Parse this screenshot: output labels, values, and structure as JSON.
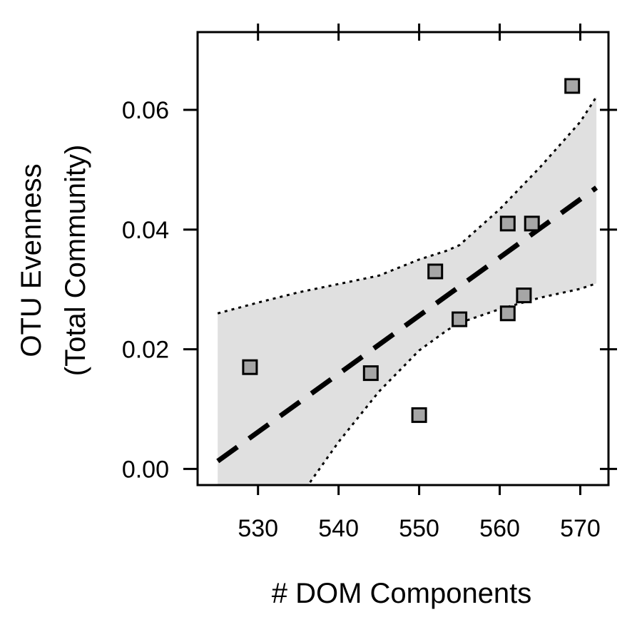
{
  "chart_data": {
    "type": "scatter",
    "title": "",
    "xlabel": "# DOM Components",
    "ylabel_lines": [
      "OTU Evenness",
      "(Total Community)"
    ],
    "xlim": [
      522.5,
      573.5
    ],
    "ylim": [
      -0.0027,
      0.073
    ],
    "x_ticks": [
      530,
      540,
      550,
      560,
      570
    ],
    "x_tick_labels": [
      "530",
      "540",
      "550",
      "560",
      "570"
    ],
    "y_ticks": [
      0.0,
      0.02,
      0.04,
      0.06
    ],
    "y_tick_labels": [
      "0.00",
      "0.02",
      "0.04",
      "0.06"
    ],
    "grid": false,
    "points": [
      {
        "x": 529,
        "y": 0.017
      },
      {
        "x": 544,
        "y": 0.016
      },
      {
        "x": 550,
        "y": 0.009
      },
      {
        "x": 552,
        "y": 0.033
      },
      {
        "x": 555,
        "y": 0.025
      },
      {
        "x": 561,
        "y": 0.041
      },
      {
        "x": 561,
        "y": 0.026
      },
      {
        "x": 563,
        "y": 0.029
      },
      {
        "x": 564,
        "y": 0.041
      },
      {
        "x": 569,
        "y": 0.064
      }
    ],
    "fit_line": {
      "x": [
        525,
        572
      ],
      "y": [
        0.0013,
        0.047
      ]
    },
    "confidence_band": {
      "x": [
        525,
        530,
        535,
        540,
        545,
        550,
        553.5,
        555,
        560,
        565,
        570,
        572
      ],
      "lower": [
        -0.0249,
        -0.0149,
        -0.005,
        0.0045,
        0.0129,
        0.0198,
        0.0232,
        0.0244,
        0.0267,
        0.0286,
        0.0301,
        0.031
      ],
      "upper": [
        0.026,
        0.0278,
        0.0295,
        0.0309,
        0.0323,
        0.035,
        0.0365,
        0.0374,
        0.0434,
        0.0504,
        0.058,
        0.0622
      ]
    },
    "colors": {
      "band": "#e0e0e0",
      "point_fill": "#a6a6a6",
      "point_stroke": "#000000",
      "fit_line": "#000000",
      "bound_line": "#000000"
    }
  }
}
